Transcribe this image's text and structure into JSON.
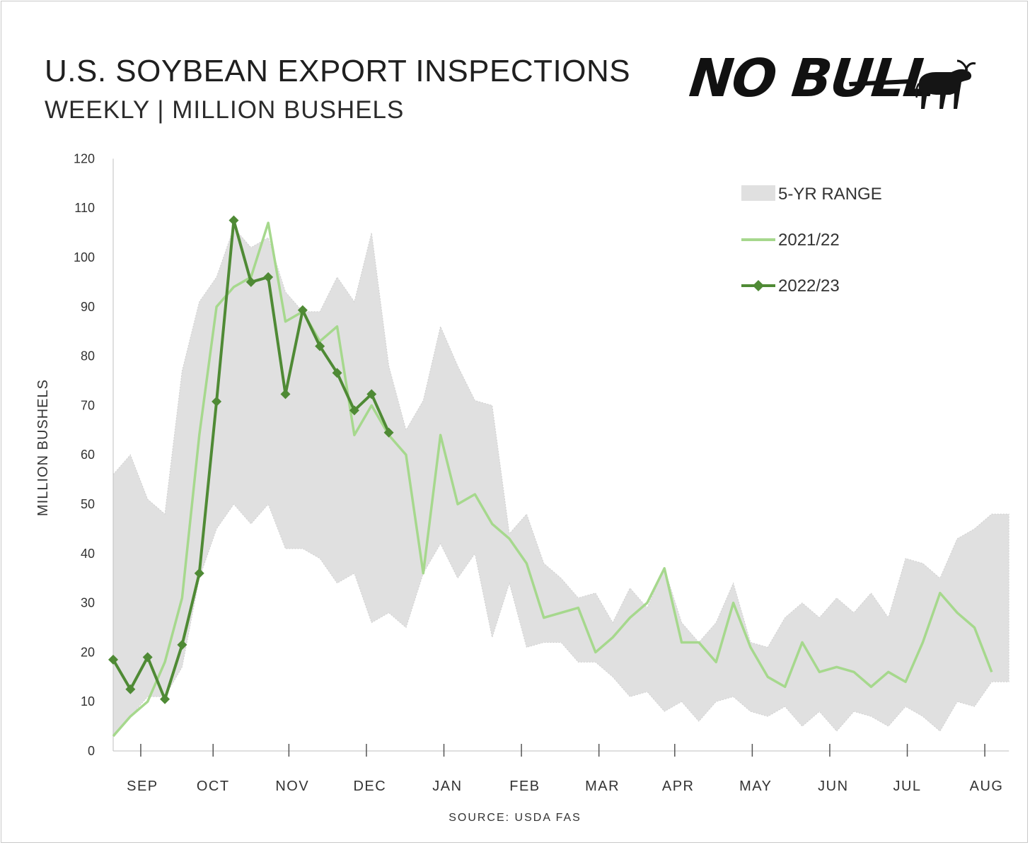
{
  "header": {
    "title": "U.S. SOYBEAN EXPORT INSPECTIONS",
    "subtitle": "WEEKLY | MILLION BUSHELS"
  },
  "logo": {
    "text": "NO BULL",
    "icon": "bull-icon"
  },
  "footer": {
    "source": "SOURCE: USDA FAS"
  },
  "colors": {
    "range_fill": "#e0e0e0",
    "series_2021": "#a6d88d",
    "series_2022": "#4f8a35",
    "axis": "#bfbfbf"
  },
  "chart_data": {
    "type": "line",
    "title": "U.S. SOYBEAN EXPORT INSPECTIONS",
    "subtitle": "WEEKLY | MILLION BUSHELS",
    "ylabel": "MILLION BUSHELS",
    "ylim": [
      0,
      120
    ],
    "yticks": [
      0,
      10,
      20,
      30,
      40,
      50,
      60,
      70,
      80,
      90,
      100,
      110,
      120
    ],
    "weeks": 53,
    "months": [
      "SEP",
      "OCT",
      "NOV",
      "DEC",
      "JAN",
      "FEB",
      "MAR",
      "APR",
      "MAY",
      "JUN",
      "JUL",
      "AUG"
    ],
    "grid": false,
    "legend_position": "top-right",
    "legend": [
      "5-YR RANGE",
      "2021/22",
      "2022/23"
    ],
    "range": {
      "name": "5-YR RANGE",
      "upper": [
        56,
        60,
        51,
        48,
        77,
        91,
        96,
        106,
        102,
        104,
        93,
        89,
        89,
        96,
        91,
        105,
        78,
        65,
        71,
        86,
        78,
        71,
        70,
        44,
        48,
        38,
        35,
        31,
        32,
        26,
        33,
        29,
        37,
        26,
        22,
        26,
        34,
        22,
        21,
        27,
        30,
        27,
        31,
        28,
        32,
        27,
        39,
        38,
        35,
        43,
        45,
        48,
        48
      ],
      "lower": [
        3,
        7,
        11,
        11,
        17,
        35,
        45,
        50,
        46,
        50,
        41,
        41,
        39,
        34,
        36,
        26,
        28,
        25,
        36,
        42,
        35,
        40,
        23,
        34,
        21,
        22,
        22,
        18,
        18,
        15,
        11,
        12,
        8,
        10,
        6,
        10,
        11,
        8,
        7,
        9,
        5,
        8,
        4,
        8,
        7,
        5,
        9,
        7,
        4,
        10,
        9,
        14,
        14
      ]
    },
    "series": [
      {
        "name": "2021/22",
        "values": [
          3,
          7,
          10,
          18,
          31,
          64,
          90,
          94,
          96,
          107,
          87,
          89,
          83,
          86,
          64,
          70,
          64,
          60,
          36,
          64,
          50,
          52,
          46,
          43,
          38,
          27,
          28,
          29,
          20,
          23,
          27,
          30,
          37,
          22,
          22,
          18,
          30,
          21,
          15,
          13,
          22,
          16,
          17,
          16,
          13,
          16,
          14,
          22,
          32,
          28,
          25,
          16,
          null
        ]
      },
      {
        "name": "2022/23",
        "values": [
          18.5,
          12.5,
          19,
          10.5,
          21.5,
          36,
          70.8,
          107.5,
          95,
          96,
          72.3,
          89.3,
          82,
          76.6,
          69,
          72.3,
          64.5,
          null,
          null,
          null,
          null,
          null,
          null,
          null,
          null,
          null,
          null,
          null,
          null,
          null,
          null,
          null,
          null,
          null,
          null,
          null,
          null,
          null,
          null,
          null,
          null,
          null,
          null,
          null,
          null,
          null,
          null,
          null,
          null,
          null,
          null,
          null,
          null
        ]
      }
    ]
  }
}
